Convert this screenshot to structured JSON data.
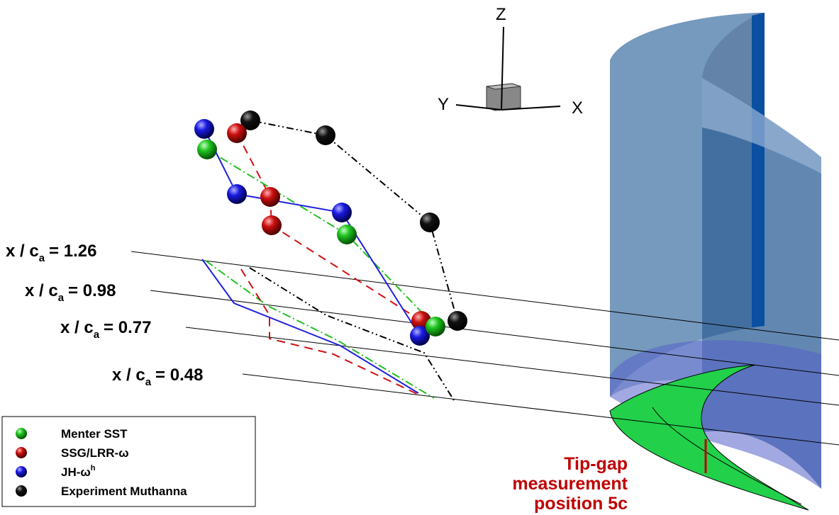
{
  "axes": {
    "z": "Z",
    "y": "Y",
    "x": "X"
  },
  "stations": [
    {
      "prefix": "x / c",
      "sub": "a",
      "suffix": "= 1.26"
    },
    {
      "prefix": "x / c",
      "sub": "a",
      "suffix": "= 0.98"
    },
    {
      "prefix": "x / c",
      "sub": "a",
      "suffix": "= 0.77"
    },
    {
      "prefix": "x / c",
      "sub": "a",
      "suffix": "= 0.48"
    }
  ],
  "legend": [
    {
      "label": "Menter SST"
    },
    {
      "label": "SSG/LRR-ω"
    },
    {
      "label": "JH-ω",
      "sup": "h"
    },
    {
      "label": "Experiment Muthanna"
    }
  ],
  "annotation": [
    "Tip-gap",
    "measurement",
    "position 5c"
  ]
}
